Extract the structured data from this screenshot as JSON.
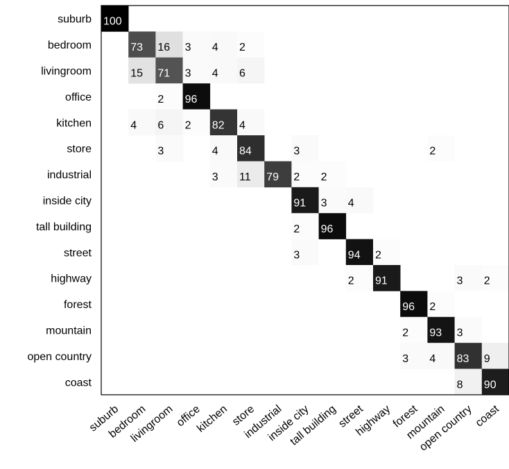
{
  "chart_data": {
    "type": "heatmap",
    "title": "",
    "xlabel": "",
    "ylabel": "",
    "rows": [
      "suburb",
      "bedroom",
      "livingroom",
      "office",
      "kitchen",
      "store",
      "industrial",
      "inside city",
      "tall building",
      "street",
      "highway",
      "forest",
      "mountain",
      "open country",
      "coast"
    ],
    "columns": [
      "suburb",
      "bedroom",
      "livingroom",
      "office",
      "kitchen",
      "store",
      "industrial",
      "inside city",
      "tall building",
      "street",
      "highway",
      "forest",
      "mountain",
      "open country",
      "coast"
    ],
    "color_scale": {
      "min": 0,
      "max": 100,
      "low_color": "#ffffff",
      "high_color": "#000000"
    },
    "values": [
      [
        100,
        null,
        null,
        null,
        null,
        null,
        null,
        null,
        null,
        null,
        null,
        null,
        null,
        null,
        null
      ],
      [
        null,
        73,
        16,
        3,
        4,
        2,
        null,
        null,
        null,
        null,
        null,
        null,
        null,
        null,
        null
      ],
      [
        null,
        15,
        71,
        3,
        4,
        6,
        null,
        null,
        null,
        null,
        null,
        null,
        null,
        null,
        null
      ],
      [
        null,
        null,
        2,
        96,
        null,
        null,
        null,
        null,
        null,
        null,
        null,
        null,
        null,
        null,
        null
      ],
      [
        null,
        4,
        6,
        2,
        82,
        4,
        null,
        null,
        null,
        null,
        null,
        null,
        null,
        null,
        null
      ],
      [
        null,
        null,
        3,
        null,
        4,
        84,
        null,
        3,
        null,
        null,
        null,
        null,
        2,
        null,
        null
      ],
      [
        null,
        null,
        null,
        null,
        3,
        11,
        79,
        2,
        2,
        null,
        null,
        null,
        null,
        null,
        null
      ],
      [
        null,
        null,
        null,
        null,
        null,
        null,
        null,
        91,
        3,
        4,
        null,
        null,
        null,
        null,
        null
      ],
      [
        null,
        null,
        null,
        null,
        null,
        null,
        null,
        2,
        96,
        null,
        null,
        null,
        null,
        null,
        null
      ],
      [
        null,
        null,
        null,
        null,
        null,
        null,
        null,
        3,
        null,
        94,
        2,
        null,
        null,
        null,
        null
      ],
      [
        null,
        null,
        null,
        null,
        null,
        null,
        null,
        null,
        null,
        2,
        91,
        null,
        null,
        3,
        2
      ],
      [
        null,
        null,
        null,
        null,
        null,
        null,
        null,
        null,
        null,
        null,
        null,
        96,
        2,
        null,
        null
      ],
      [
        null,
        null,
        null,
        null,
        null,
        null,
        null,
        null,
        null,
        null,
        null,
        2,
        93,
        3,
        null
      ],
      [
        null,
        null,
        null,
        null,
        null,
        null,
        null,
        null,
        null,
        null,
        null,
        3,
        4,
        83,
        9
      ],
      [
        null,
        null,
        null,
        null,
        null,
        null,
        null,
        null,
        null,
        null,
        null,
        null,
        null,
        8,
        90
      ]
    ],
    "grid": false,
    "legend": "none"
  }
}
